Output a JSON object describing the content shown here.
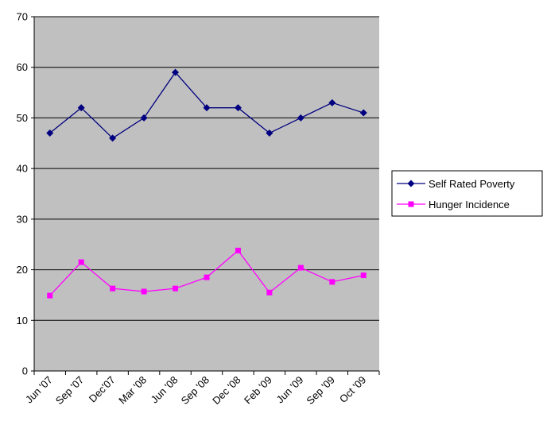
{
  "chart_data": {
    "type": "line",
    "categories": [
      "Jun '07",
      "Sep '07",
      "Dec'07",
      "Mar '08",
      "Jun '08",
      "Sep '08",
      "Dec '08",
      "Feb '09",
      "Jun '09",
      "Sep '09",
      "Oct '09"
    ],
    "series": [
      {
        "name": "Self Rated Poverty",
        "color": "#000080",
        "marker": "diamond",
        "values": [
          47,
          52,
          46,
          50,
          59,
          52,
          52,
          47,
          50,
          53,
          51
        ]
      },
      {
        "name": "Hunger Incidence",
        "color": "#ff00ff",
        "marker": "square",
        "values": [
          14.9,
          21.5,
          16.3,
          15.7,
          16.3,
          18.5,
          23.8,
          15.5,
          20.4,
          17.6,
          18.9
        ]
      }
    ],
    "ylim": [
      0,
      70
    ],
    "yticks": [
      0,
      10,
      20,
      30,
      40,
      50,
      60,
      70
    ],
    "grid": true,
    "legend": "right"
  }
}
